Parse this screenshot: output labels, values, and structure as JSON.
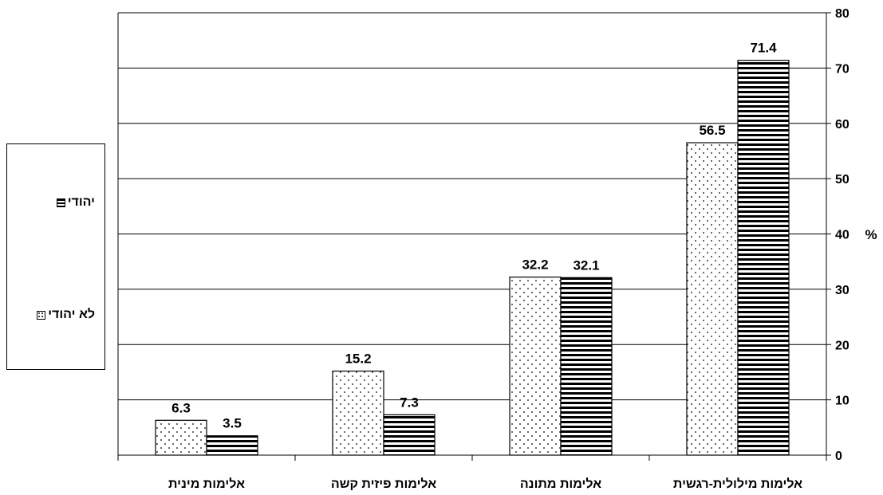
{
  "chart_data": {
    "type": "bar",
    "categories": [
      "אלימות מילולית-רגשית",
      "אלימות מתונה",
      "אלימות פיזית קשה",
      "אלימות מינית"
    ],
    "series": [
      {
        "name": "לא יהודי",
        "values": [
          56.5,
          32.2,
          15.2,
          6.3
        ],
        "pattern": "dots"
      },
      {
        "name": "יהודי",
        "values": [
          71.4,
          32.1,
          7.3,
          3.5
        ],
        "pattern": "horizontal-stripes"
      }
    ],
    "ylabel": "%",
    "ylim": [
      0,
      80
    ],
    "yticks": [
      0,
      10,
      20,
      30,
      40,
      50,
      60,
      70,
      80
    ],
    "y_axis_side": "right",
    "category_order": "right-to-left",
    "grid": true,
    "legend_placement": "left",
    "data_labels": true
  },
  "legend": {
    "jewish_label": "יהודי",
    "nonjewish_label": "לא יהודי"
  },
  "colors": {
    "bar_outline": "#000000",
    "dots": "#000000",
    "stripes": "#000000",
    "grid": "#000000",
    "background": "#ffffff"
  }
}
